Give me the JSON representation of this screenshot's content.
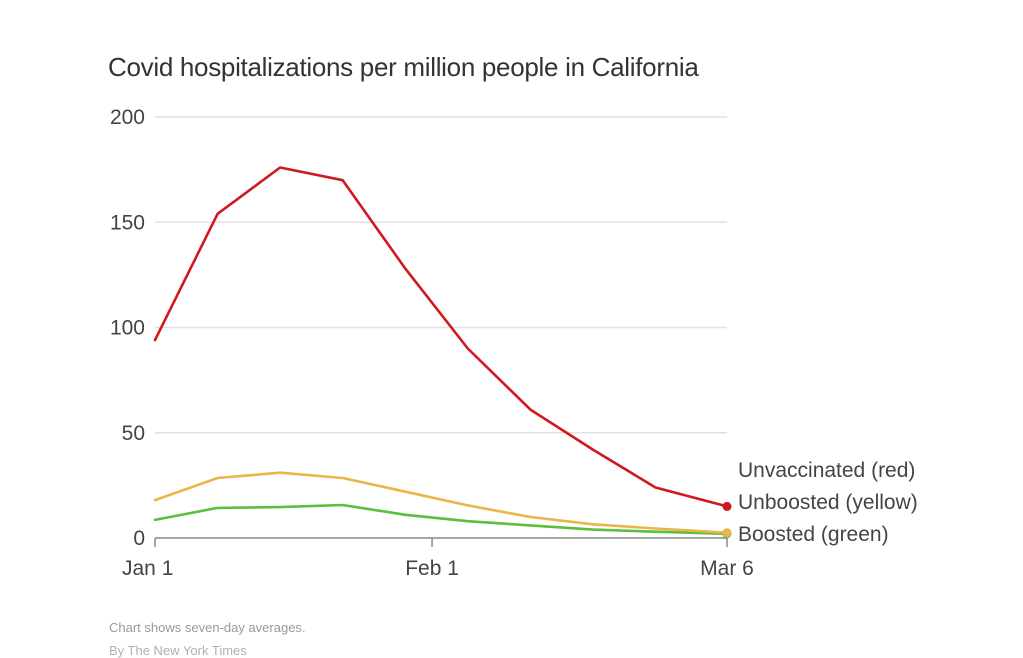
{
  "chart_data": {
    "type": "line",
    "title": "Covid hospitalizations per million people in California",
    "xlabel": "",
    "ylabel": "",
    "x_start": "Jan 1",
    "x_end": "Mar 6",
    "x_days": [
      0,
      7,
      14,
      21,
      28,
      35,
      42,
      49,
      56,
      64
    ],
    "x_ticks": [
      {
        "day": 0,
        "label": "Jan 1"
      },
      {
        "day": 31,
        "label": "Feb 1"
      },
      {
        "day": 64,
        "label": "Mar 6"
      }
    ],
    "ylim": [
      0,
      200
    ],
    "y_ticks": [
      0,
      50,
      100,
      150,
      200
    ],
    "grid": true,
    "series": [
      {
        "name": "Unvaccinated (red)",
        "color": "#d0191d",
        "values": [
          94,
          154,
          176,
          170,
          128,
          90,
          61,
          42,
          24,
          15
        ]
      },
      {
        "name": "Unboosted (yellow)",
        "color": "#ebb54a",
        "values": [
          18,
          28.5,
          31,
          28.5,
          22,
          15.5,
          10,
          6.5,
          4.5,
          2.5
        ]
      },
      {
        "name": "Boosted (green)",
        "color": "#5cbf3a",
        "values": [
          8.6,
          14.3,
          14.7,
          15.7,
          11,
          8,
          6,
          4,
          3,
          2
        ]
      }
    ],
    "legend_placement": "right (end-of-line labels)"
  },
  "footer": {
    "note": "Chart shows seven-day averages.",
    "credit": "By The New York Times"
  }
}
